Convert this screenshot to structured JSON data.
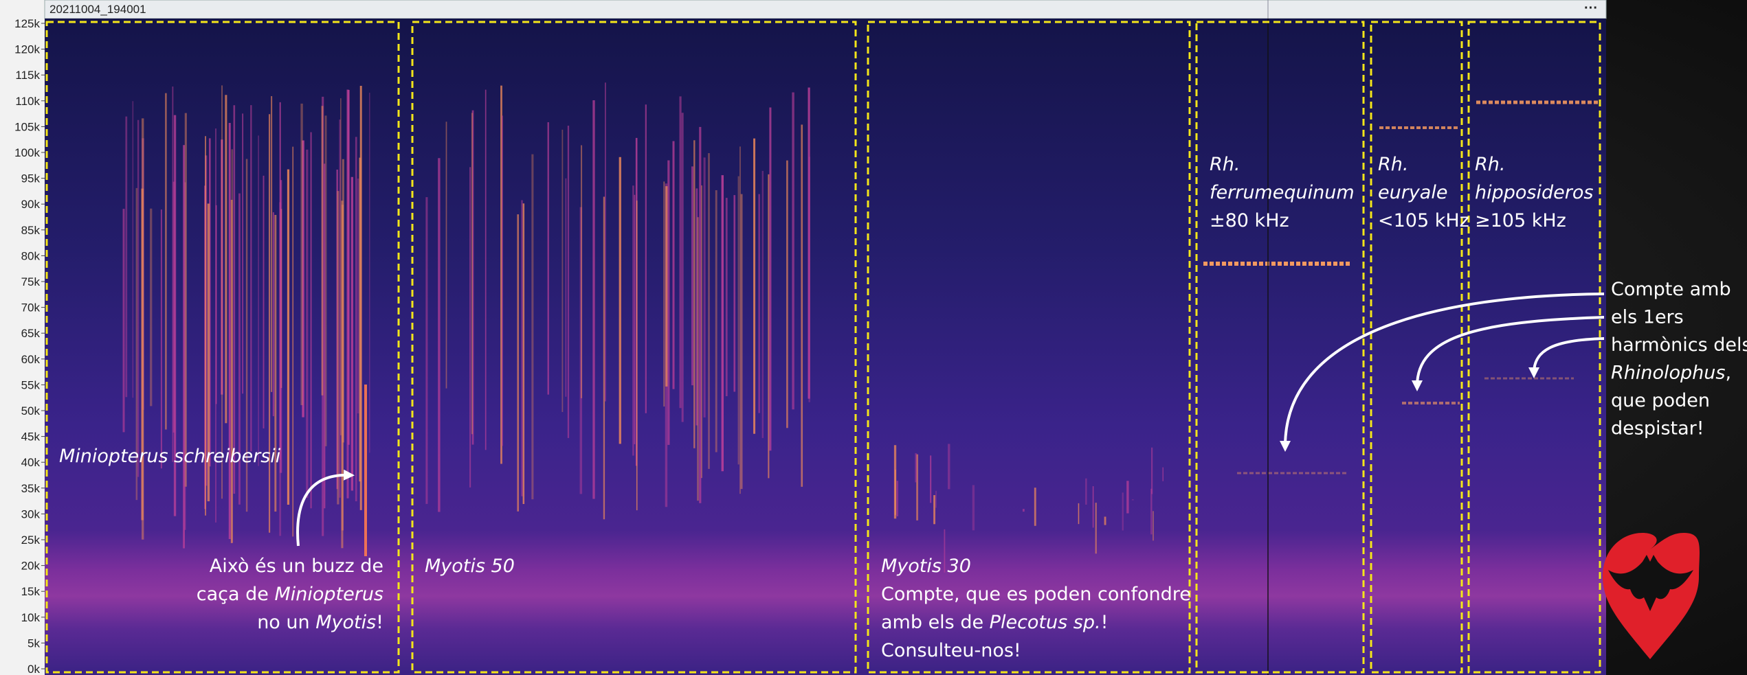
{
  "header": {
    "title": "20211004_194001",
    "menu": "···"
  },
  "axis": {
    "ticks": [
      "125k",
      "120k",
      "115k",
      "110k",
      "105k",
      "100k",
      "95k",
      "90k",
      "85k",
      "80k",
      "75k",
      "70k",
      "65k",
      "60k",
      "55k",
      "50k",
      "45k",
      "40k",
      "35k",
      "30k",
      "25k",
      "20k",
      "15k",
      "10k",
      "5k",
      "0k"
    ]
  },
  "boxes": [
    {
      "label": [
        [
          {
            "italic": "Miniopterus schreibersii"
          }
        ]
      ],
      "note": [
        [
          {
            "text": "Això és un buzz de"
          }
        ],
        [
          {
            "text": "caça de "
          },
          {
            "italic": "Miniopterus"
          }
        ],
        [
          {
            "text": "no un "
          },
          {
            "italic": "Myotis"
          },
          {
            "text": "!"
          }
        ]
      ]
    },
    {
      "label": [
        [
          {
            "italic": "Myotis 50"
          }
        ]
      ]
    },
    {
      "label": [
        [
          {
            "italic": "Myotis 30"
          }
        ],
        [
          {
            "text": "Compte, que es poden confondre"
          }
        ],
        [
          {
            "text": "amb els de "
          },
          {
            "italic": "Plecotus sp."
          },
          {
            "text": "!"
          }
        ],
        [
          {
            "text": "Consulteu-nos!"
          }
        ]
      ]
    },
    {
      "label": [
        [
          {
            "italic": "Rh."
          }
        ],
        [
          {
            "italic": "ferrumequinum"
          }
        ],
        [
          {
            "text": "±80 kHz"
          }
        ]
      ]
    },
    {
      "label": [
        [
          {
            "italic": "Rh."
          }
        ],
        [
          {
            "italic": "euryale"
          }
        ],
        [
          {
            "text": "<105 kHz"
          }
        ]
      ]
    },
    {
      "label": [
        [
          {
            "italic": "Rh."
          }
        ],
        [
          {
            "italic": "hipposideros"
          }
        ],
        [
          {
            "text": "≥105 kHz"
          }
        ]
      ]
    }
  ],
  "side_note": [
    [
      {
        "text": "Compte amb"
      }
    ],
    [
      {
        "text": "els 1ers"
      }
    ],
    [
      {
        "text": "harmònics dels"
      }
    ],
    [
      {
        "italic": "Rhinolophus"
      },
      {
        "text": ","
      }
    ],
    [
      {
        "text": "que poden"
      }
    ],
    [
      {
        "text": "despistar!"
      }
    ]
  ]
}
